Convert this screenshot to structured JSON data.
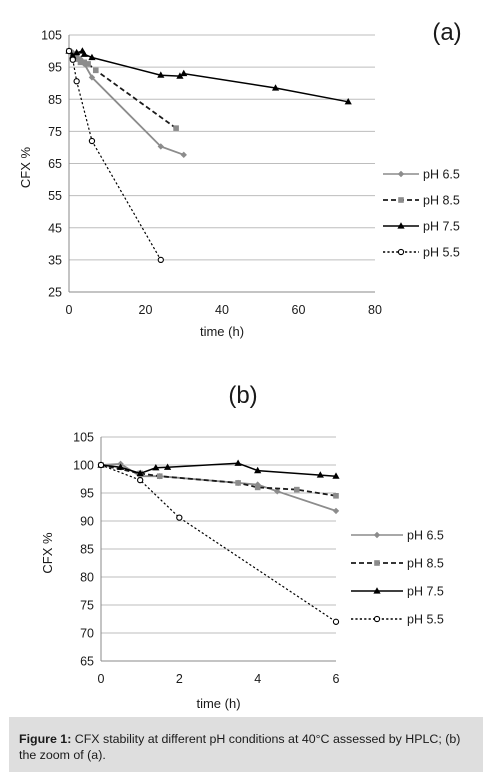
{
  "figure": {
    "caption_label": "Figure 1:",
    "caption_text": "CFX stability at different pH conditions at 40°C assessed by HPLC; (b) the zoom of (a)."
  },
  "chart_data": [
    {
      "type": "line",
      "panel_label": "(a)",
      "xlabel": "time (h)",
      "ylabel": "CFX %",
      "xlim": [
        0,
        80
      ],
      "ylim": [
        25,
        105
      ],
      "x_ticks": [
        0,
        20,
        40,
        60,
        80
      ],
      "y_ticks": [
        25,
        35,
        45,
        55,
        65,
        75,
        85,
        95,
        105
      ],
      "grid": "horizontal",
      "legend_position": "right",
      "series": [
        {
          "name": "pH 6.5",
          "color": "#8c8c8c",
          "dash": "solid",
          "marker": "diamond",
          "x": [
            0,
            0.5,
            1,
            2,
            3,
            4,
            6,
            24,
            30
          ],
          "y": [
            100,
            100,
            99.5,
            99,
            97.5,
            96,
            91.8,
            70.3,
            67.7
          ]
        },
        {
          "name": "pH 8.5",
          "color": "#1a1a1a",
          "dash": "dashed",
          "marker": "square-gray",
          "x": [
            0,
            1,
            2,
            3,
            4,
            5,
            7,
            28
          ],
          "y": [
            100,
            98.5,
            97.5,
            96.5,
            96.5,
            96,
            94,
            76
          ]
        },
        {
          "name": "pH 7.5",
          "color": "#000000",
          "dash": "solid",
          "marker": "triangle",
          "x": [
            0,
            1,
            2,
            3.5,
            4,
            6,
            24,
            29,
            30,
            54,
            73
          ],
          "y": [
            100,
            98.5,
            99.5,
            100,
            99,
            98,
            92.5,
            92.2,
            93,
            88.5,
            84.2
          ]
        },
        {
          "name": "pH 5.5",
          "color": "#000000",
          "dash": "dotted",
          "marker": "circle-open",
          "x": [
            0,
            1,
            2,
            6,
            24
          ],
          "y": [
            100,
            97.3,
            90.6,
            72,
            35
          ]
        }
      ]
    },
    {
      "type": "line",
      "panel_label": "(b)",
      "xlabel": "time (h)",
      "ylabel": "CFX %",
      "xlim": [
        0,
        6
      ],
      "ylim": [
        65,
        105
      ],
      "x_ticks": [
        0,
        2,
        4,
        6
      ],
      "y_ticks": [
        65,
        70,
        75,
        80,
        85,
        90,
        95,
        100,
        105
      ],
      "grid": "horizontal",
      "legend_position": "right",
      "series": [
        {
          "name": "pH 6.5",
          "color": "#8c8c8c",
          "dash": "solid",
          "marker": "diamond",
          "x": [
            0,
            0.5,
            1,
            1.5,
            3.5,
            4,
            4.5,
            6
          ],
          "y": [
            100,
            100.2,
            98,
            98,
            96.8,
            96.5,
            95.3,
            91.8
          ]
        },
        {
          "name": "pH 8.5",
          "color": "#1a1a1a",
          "dash": "dashed",
          "marker": "square-gray",
          "x": [
            0,
            1,
            1.5,
            3.5,
            4,
            5,
            6
          ],
          "y": [
            100,
            98.5,
            98,
            96.8,
            96,
            95.6,
            94.5
          ]
        },
        {
          "name": "pH 7.5",
          "color": "#000000",
          "dash": "solid",
          "marker": "triangle",
          "x": [
            0,
            0.5,
            1,
            1.4,
            1.7,
            3.5,
            4,
            5.6,
            6
          ],
          "y": [
            100,
            99.6,
            98.5,
            99.5,
            99.6,
            100.3,
            99,
            98.2,
            98
          ]
        },
        {
          "name": "pH 5.5",
          "color": "#000000",
          "dash": "dotted",
          "marker": "circle-open",
          "x": [
            0,
            1,
            2,
            6
          ],
          "y": [
            100,
            97.3,
            90.6,
            72
          ]
        }
      ]
    }
  ]
}
